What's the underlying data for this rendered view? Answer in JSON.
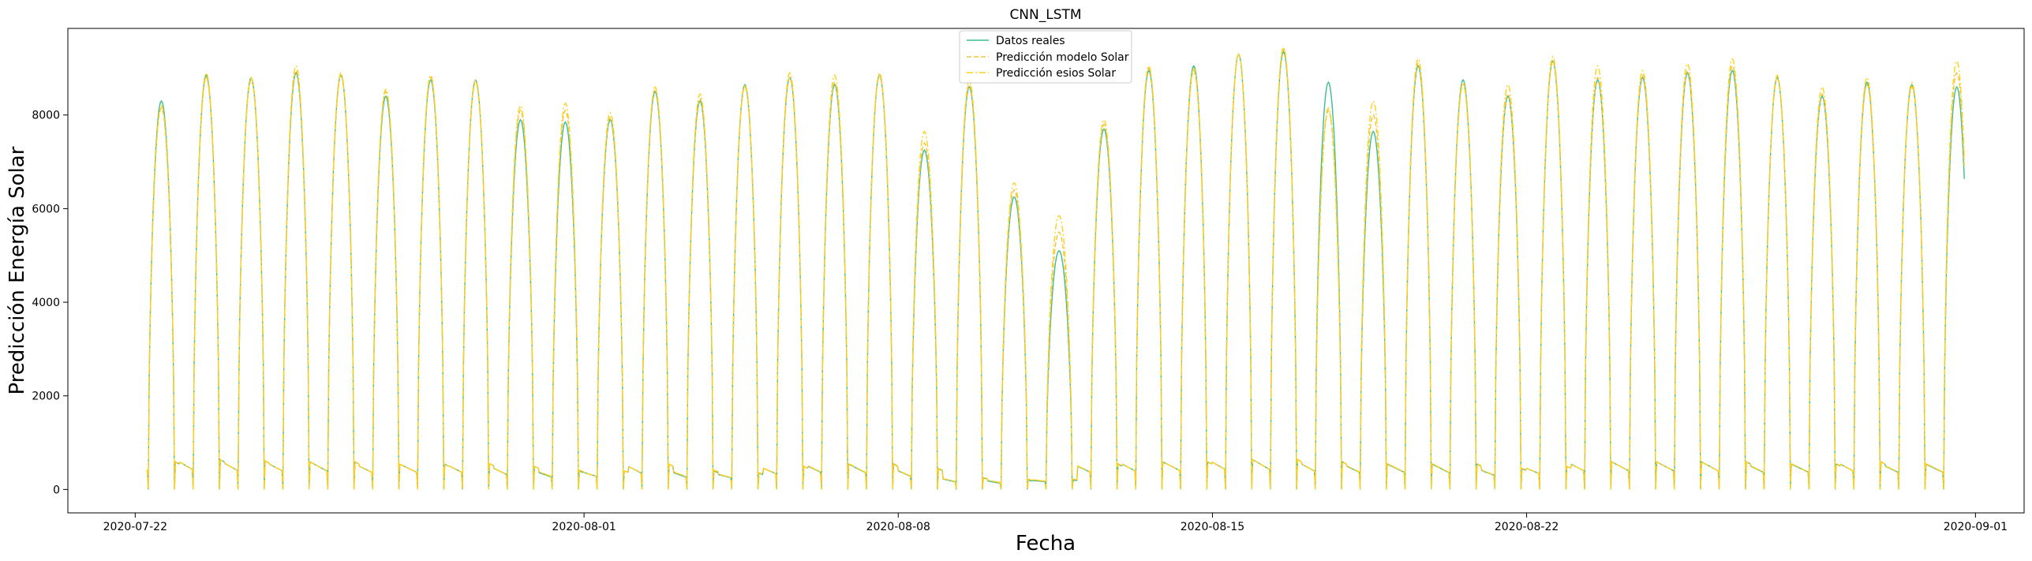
{
  "chart_data": {
    "type": "line",
    "title": "CNN_LSTM",
    "xlabel": "Fecha",
    "ylabel": "Predicción Energía Solar",
    "x_ticks": [
      "2020-07-22",
      "2020-08-01",
      "2020-08-08",
      "2020-08-15",
      "2020-08-22",
      "2020-09-01"
    ],
    "y_ticks": [
      0,
      2000,
      4000,
      6000,
      8000
    ],
    "xlim": [
      "2020-07-20T12:00",
      "2020-09-02T02:00"
    ],
    "ylim": [
      -500,
      9850
    ],
    "grid": false,
    "legend_position": "top-center",
    "series_start": "2020-07-22T06:00",
    "series_end": "2020-08-31T18:00",
    "daily_peak_dates": [
      "2020-07-22",
      "2020-07-23",
      "2020-07-24",
      "2020-07-25",
      "2020-07-26",
      "2020-07-27",
      "2020-07-28",
      "2020-07-29",
      "2020-07-30",
      "2020-07-31",
      "2020-08-01",
      "2020-08-02",
      "2020-08-03",
      "2020-08-04",
      "2020-08-05",
      "2020-08-06",
      "2020-08-07",
      "2020-08-08",
      "2020-08-09",
      "2020-08-10",
      "2020-08-11",
      "2020-08-12",
      "2020-08-13",
      "2020-08-14",
      "2020-08-15",
      "2020-08-16",
      "2020-08-17",
      "2020-08-18",
      "2020-08-19",
      "2020-08-20",
      "2020-08-21",
      "2020-08-22",
      "2020-08-23",
      "2020-08-24",
      "2020-08-25",
      "2020-08-26",
      "2020-08-27",
      "2020-08-28",
      "2020-08-29",
      "2020-08-30",
      "2020-08-31"
    ],
    "series": [
      {
        "name": "Datos reales",
        "color": "#3dbd8f",
        "style": "solid",
        "daily_peaks": [
          8300,
          8850,
          8800,
          8900,
          8850,
          8400,
          8750,
          8750,
          7900,
          7850,
          7900,
          8500,
          8300,
          8650,
          8800,
          8650,
          8850,
          7250,
          8600,
          6250,
          5100,
          7700,
          8950,
          9050,
          9300,
          9350,
          8700,
          7650,
          9050,
          8750,
          8400,
          9150,
          8750,
          8800,
          8900,
          8950,
          8800,
          8400,
          8700,
          8650,
          8600
        ],
        "night_levels": [
          600,
          650,
          620,
          600,
          600,
          550,
          550,
          560,
          500,
          400,
          400,
          550,
          400,
          350,
          500,
          550,
          550,
          450,
          250,
          200,
          200,
          550,
          600,
          600,
          650,
          650,
          600,
          550,
          550,
          550,
          450,
          500,
          600,
          600,
          600,
          600,
          550,
          550,
          600,
          550,
          550
        ]
      },
      {
        "name": "Predicción modelo Solar",
        "color": "#f5c242",
        "style": "dashed",
        "daily_peaks": [
          8150,
          8800,
          8750,
          8950,
          8850,
          8500,
          8800,
          8750,
          8100,
          8100,
          7950,
          8550,
          8350,
          8600,
          8800,
          8700,
          8850,
          7400,
          8650,
          6400,
          5500,
          7800,
          9000,
          8950,
          9300,
          9400,
          8100,
          8000,
          9100,
          8700,
          8450,
          9150,
          8800,
          8850,
          8950,
          9050,
          8800,
          8450,
          8650,
          8600,
          8900
        ],
        "night_levels": [
          600,
          650,
          620,
          600,
          600,
          550,
          550,
          560,
          500,
          420,
          400,
          550,
          420,
          360,
          500,
          560,
          560,
          460,
          260,
          220,
          220,
          560,
          600,
          600,
          650,
          650,
          600,
          560,
          560,
          560,
          460,
          500,
          600,
          600,
          600,
          600,
          560,
          560,
          600,
          560,
          560
        ]
      },
      {
        "name": "Predicción esios Solar",
        "color": "#ffd21a",
        "style": "dashdot",
        "daily_peaks": [
          8200,
          8900,
          8800,
          9050,
          8900,
          8550,
          8850,
          8700,
          8200,
          8250,
          8050,
          8600,
          8450,
          8650,
          8900,
          8850,
          8900,
          7650,
          8750,
          6550,
          5850,
          7900,
          9050,
          9000,
          9300,
          9450,
          8150,
          8300,
          9200,
          8650,
          8650,
          9250,
          9050,
          8950,
          9100,
          9200,
          8850,
          8600,
          8800,
          8700,
          9150
        ],
        "night_levels": [
          600,
          650,
          620,
          600,
          600,
          550,
          550,
          560,
          500,
          420,
          400,
          550,
          420,
          360,
          500,
          560,
          560,
          460,
          260,
          220,
          220,
          560,
          600,
          600,
          650,
          650,
          600,
          560,
          560,
          560,
          460,
          500,
          600,
          600,
          600,
          600,
          560,
          560,
          600,
          560,
          560
        ]
      }
    ]
  }
}
